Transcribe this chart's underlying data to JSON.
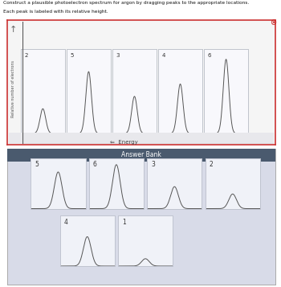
{
  "title_line1": "Construct a plausible photoelectron spectrum for argon by dragging peaks to the appropriate locations.",
  "title_line2": "Each peak is labeled with its relative height.",
  "top_labels": [
    "2",
    "5",
    "3",
    "4",
    "6"
  ],
  "top_heights": [
    2,
    5,
    3,
    4,
    6
  ],
  "answer_bank_text": "Answer Bank",
  "answer_bank_labels": [
    "5",
    "6",
    "3",
    "2",
    "4",
    "1"
  ],
  "answer_bank_heights": [
    5,
    6,
    3,
    2,
    4,
    1
  ],
  "peak_color": "#555555",
  "xlabel": "Energy",
  "ylabel": "Relative number of electrons",
  "top_border_color": "#cc3333",
  "answer_bank_header_color": "#4a5a6e",
  "answer_section_bg": "#d8dbe8",
  "top_section_bg": "#f5f5f5",
  "box_bg": "#f0f2f8",
  "box_border": "#c0c4d0",
  "close_icon_color": "#cc2222"
}
